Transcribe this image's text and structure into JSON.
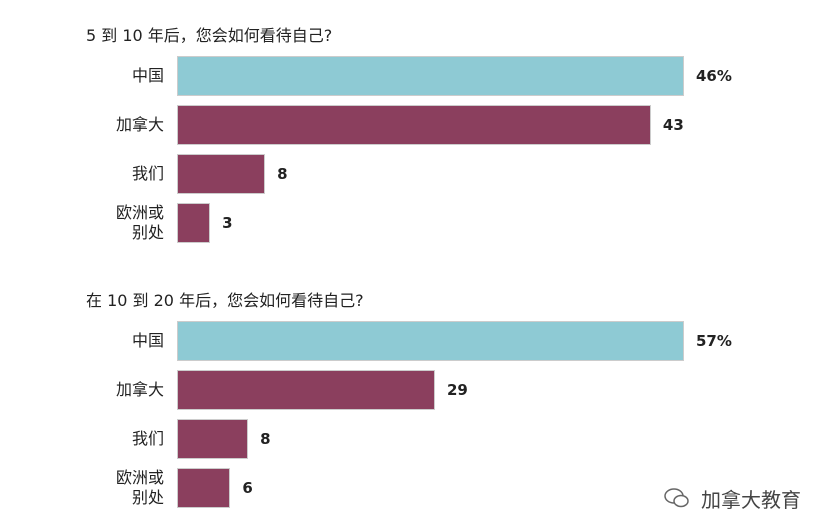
{
  "charts": [
    {
      "type": "barh",
      "title": "5 到 10 年后，您会如何看待自己?",
      "categories": [
        "中国",
        "加拿大",
        "我们",
        "欧洲或别处"
      ],
      "values": [
        46,
        43,
        8,
        3
      ],
      "value_labels": [
        "46%",
        "43",
        "8",
        "3"
      ],
      "colors": [
        "#8ecad4",
        "#8b3f5e",
        "#8b3f5e",
        "#8b3f5e"
      ],
      "xlim": [
        0,
        46
      ]
    },
    {
      "type": "barh",
      "title": "在 10 到 20 年后，您会如何看待自己?",
      "categories": [
        "中国",
        "加拿大",
        "我们",
        "欧洲或别处"
      ],
      "values": [
        57,
        29,
        8,
        6
      ],
      "value_labels": [
        "57%",
        "29",
        "8",
        "6"
      ],
      "colors": [
        "#8ecad4",
        "#8b3f5e",
        "#8b3f5e",
        "#8b3f5e"
      ],
      "xlim": [
        0,
        57
      ]
    }
  ],
  "watermark": "加拿大教育"
}
